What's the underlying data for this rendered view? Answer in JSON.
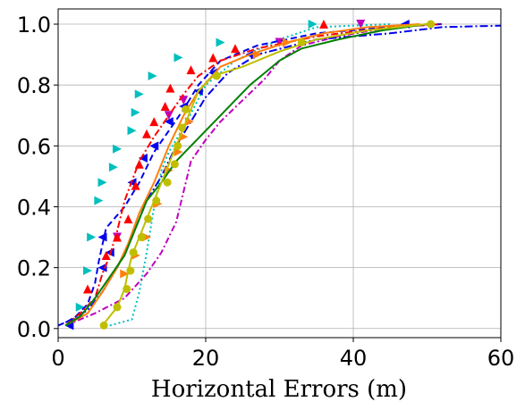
{
  "chart_data": {
    "type": "line",
    "title": "",
    "xlabel": "Horizontal Errors (m)",
    "ylabel": "",
    "xlim": [
      0,
      60
    ],
    "ylim": [
      -0.03,
      1.05
    ],
    "grid": true,
    "legend": "none",
    "x_ticks": [
      0,
      20,
      40,
      60
    ],
    "x_tick_labels": [
      "0",
      "20",
      "40",
      "60"
    ],
    "y_ticks": [
      0.0,
      0.2,
      0.4,
      0.6,
      0.8,
      1.0
    ],
    "y_tick_labels": [
      "0.0",
      "0.2",
      "0.4",
      "0.6",
      "0.8",
      "1.0"
    ],
    "series": [
      {
        "color": "#00bfbf",
        "dash": "2,3",
        "marker": "triangle-right",
        "points": [
          [
            7,
            0.01
          ],
          [
            10,
            0.03
          ],
          [
            11,
            0.12
          ],
          [
            12,
            0.25
          ],
          [
            13,
            0.4
          ],
          [
            14,
            0.52
          ],
          [
            15,
            0.58
          ],
          [
            17,
            0.66
          ],
          [
            20,
            0.8
          ],
          [
            24,
            0.88
          ],
          [
            30,
            0.95
          ],
          [
            35,
            0.99
          ],
          [
            45,
            1.0
          ]
        ],
        "marker_points": [
          [
            3,
            0.07
          ],
          [
            4,
            0.19
          ],
          [
            4.5,
            0.3
          ],
          [
            5.5,
            0.42
          ],
          [
            6,
            0.48
          ],
          [
            7.5,
            0.53
          ],
          [
            8,
            0.59
          ],
          [
            10,
            0.65
          ],
          [
            10.5,
            0.71
          ],
          [
            11,
            0.77
          ],
          [
            12.8,
            0.83
          ],
          [
            16.3,
            0.89
          ],
          [
            22,
            0.94
          ],
          [
            34.5,
            1.0
          ]
        ]
      },
      {
        "color": "#bf00bf",
        "dash": "7,3,2,3",
        "marker": "triangle-down",
        "points": [
          [
            1,
            0.01
          ],
          [
            5,
            0.05
          ],
          [
            9,
            0.1
          ],
          [
            12,
            0.18
          ],
          [
            14,
            0.25
          ],
          [
            16,
            0.35
          ],
          [
            17,
            0.45
          ],
          [
            18,
            0.55
          ],
          [
            20,
            0.62
          ],
          [
            22,
            0.68
          ],
          [
            25,
            0.75
          ],
          [
            28,
            0.82
          ],
          [
            30,
            0.88
          ],
          [
            33,
            0.93
          ],
          [
            38,
            0.96
          ],
          [
            45,
            0.99
          ],
          [
            52,
            1.0
          ]
        ],
        "marker_points": [
          [
            8,
            0.3
          ],
          [
            15,
            0.7
          ],
          [
            17,
            0.75
          ],
          [
            30,
            0.94
          ],
          [
            41,
            1.0
          ]
        ]
      },
      {
        "color": "#0000ee",
        "dash": "7,4",
        "marker": "triangle-left",
        "points": [
          [
            0,
            0.01
          ],
          [
            2,
            0.03
          ],
          [
            4,
            0.08
          ],
          [
            5,
            0.15
          ],
          [
            5.5,
            0.22
          ],
          [
            6.5,
            0.33
          ],
          [
            9,
            0.4
          ],
          [
            11,
            0.48
          ],
          [
            13,
            0.58
          ],
          [
            15,
            0.65
          ],
          [
            17,
            0.72
          ],
          [
            19,
            0.8
          ],
          [
            22,
            0.88
          ],
          [
            27,
            0.93
          ],
          [
            35,
            0.97
          ],
          [
            45,
            0.99
          ],
          [
            52,
            1.0
          ]
        ],
        "marker_points": [
          [
            1.5,
            0.01
          ],
          [
            6,
            0.2
          ],
          [
            7,
            0.25
          ],
          [
            6,
            0.3
          ],
          [
            10,
            0.48
          ],
          [
            11.5,
            0.56
          ],
          [
            13,
            0.6
          ],
          [
            15,
            0.68
          ],
          [
            17,
            0.73
          ],
          [
            19,
            0.78
          ],
          [
            21,
            0.84
          ],
          [
            26,
            0.9
          ],
          [
            47,
            1.0
          ]
        ]
      },
      {
        "color": "#0000ee",
        "dash": "9,3,2,3",
        "marker": "none",
        "points": [
          [
            1,
            0.02
          ],
          [
            4,
            0.06
          ],
          [
            6,
            0.12
          ],
          [
            8,
            0.2
          ],
          [
            10,
            0.3
          ],
          [
            12,
            0.42
          ],
          [
            14,
            0.5
          ],
          [
            16,
            0.6
          ],
          [
            18,
            0.68
          ],
          [
            20,
            0.76
          ],
          [
            23,
            0.84
          ],
          [
            27,
            0.9
          ],
          [
            35,
            0.95
          ],
          [
            45,
            0.97
          ],
          [
            52,
            0.99
          ],
          [
            60,
            0.995
          ]
        ],
        "marker_points": []
      },
      {
        "color": "#ff0000",
        "dash": "8,3,2,3",
        "marker": "triangle-up",
        "points": [
          [
            1,
            0.01
          ],
          [
            3,
            0.05
          ],
          [
            5,
            0.1
          ],
          [
            6,
            0.18
          ],
          [
            7,
            0.24
          ],
          [
            8,
            0.32
          ],
          [
            9,
            0.42
          ],
          [
            11,
            0.55
          ],
          [
            13,
            0.63
          ],
          [
            15,
            0.7
          ],
          [
            17,
            0.77
          ],
          [
            19,
            0.83
          ],
          [
            22,
            0.88
          ],
          [
            27,
            0.92
          ],
          [
            35,
            0.96
          ],
          [
            45,
            0.99
          ],
          [
            52,
            1.0
          ]
        ],
        "marker_points": [
          [
            4,
            0.13
          ],
          [
            6.5,
            0.24
          ],
          [
            8,
            0.3
          ],
          [
            9.5,
            0.36
          ],
          [
            10.5,
            0.47
          ],
          [
            11,
            0.54
          ],
          [
            12,
            0.64
          ],
          [
            13,
            0.68
          ],
          [
            14.5,
            0.73
          ],
          [
            15.2,
            0.79
          ],
          [
            18,
            0.85
          ],
          [
            21,
            0.89
          ],
          [
            24,
            0.92
          ],
          [
            36,
            1.0
          ]
        ]
      },
      {
        "color": "#ff7f0e",
        "dash": "",
        "marker": "triangle-right",
        "points": [
          [
            1,
            0.01
          ],
          [
            4,
            0.05
          ],
          [
            6,
            0.12
          ],
          [
            8,
            0.2
          ],
          [
            9.5,
            0.28
          ],
          [
            11,
            0.38
          ],
          [
            13,
            0.48
          ],
          [
            15,
            0.6
          ],
          [
            17,
            0.7
          ],
          [
            19,
            0.78
          ],
          [
            22,
            0.86
          ],
          [
            26,
            0.9
          ],
          [
            31,
            0.94
          ],
          [
            36,
            0.97
          ],
          [
            42,
            0.99
          ],
          [
            49,
            1.0
          ]
        ],
        "marker_points": [
          [
            9,
            0.18
          ],
          [
            10.5,
            0.24
          ],
          [
            12,
            0.3
          ],
          [
            13.5,
            0.41
          ],
          [
            15,
            0.52
          ],
          [
            16.3,
            0.58
          ],
          [
            17,
            0.63
          ],
          [
            17.8,
            0.68
          ],
          [
            27,
            0.9
          ],
          [
            31,
            0.94
          ]
        ]
      },
      {
        "color": "#008000",
        "dash": "",
        "marker": "none",
        "points": [
          [
            1,
            0.01
          ],
          [
            3,
            0.04
          ],
          [
            5,
            0.1
          ],
          [
            7,
            0.17
          ],
          [
            9,
            0.24
          ],
          [
            10,
            0.3
          ],
          [
            11,
            0.36
          ],
          [
            12,
            0.42
          ],
          [
            14,
            0.48
          ],
          [
            16,
            0.55
          ],
          [
            18,
            0.6
          ],
          [
            20,
            0.65
          ],
          [
            22,
            0.7
          ],
          [
            24,
            0.75
          ],
          [
            26,
            0.8
          ],
          [
            28,
            0.84
          ],
          [
            30,
            0.88
          ],
          [
            33,
            0.92
          ],
          [
            38,
            0.95
          ],
          [
            44,
            0.98
          ],
          [
            50,
            1.0
          ]
        ],
        "marker_points": []
      },
      {
        "color": "#bfbf00",
        "dash": "",
        "marker": "circle",
        "points": [
          [
            6,
            0.01
          ],
          [
            8,
            0.07
          ],
          [
            9,
            0.13
          ],
          [
            9.5,
            0.19
          ],
          [
            10,
            0.24
          ],
          [
            11,
            0.3
          ],
          [
            12,
            0.36
          ],
          [
            13,
            0.42
          ],
          [
            14,
            0.48
          ],
          [
            15,
            0.54
          ],
          [
            16,
            0.6
          ],
          [
            17,
            0.66
          ],
          [
            18,
            0.72
          ],
          [
            19,
            0.78
          ],
          [
            21,
            0.83
          ],
          [
            25,
            0.86
          ],
          [
            30,
            0.91
          ],
          [
            35,
            0.95
          ],
          [
            42,
            0.98
          ],
          [
            50,
            1.0
          ]
        ],
        "marker_points": [
          [
            6.2,
            0.01
          ],
          [
            8,
            0.07
          ],
          [
            9.3,
            0.13
          ],
          [
            9.8,
            0.19
          ],
          [
            10.2,
            0.25
          ],
          [
            11.3,
            0.3
          ],
          [
            12.2,
            0.36
          ],
          [
            13.3,
            0.42
          ],
          [
            14.8,
            0.48
          ],
          [
            15.8,
            0.54
          ],
          [
            16.2,
            0.6
          ],
          [
            16.8,
            0.66
          ],
          [
            17.3,
            0.72
          ],
          [
            21.5,
            0.83
          ],
          [
            33,
            0.94
          ],
          [
            50.5,
            1.0
          ]
        ]
      }
    ]
  }
}
